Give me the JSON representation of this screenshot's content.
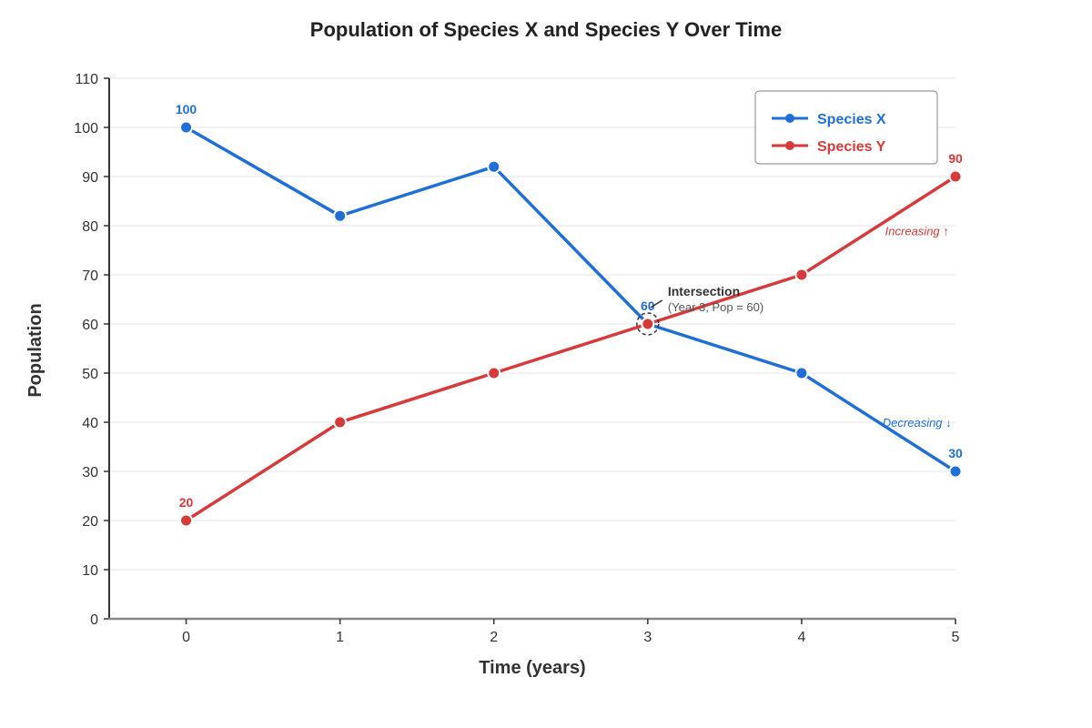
{
  "chart_data": {
    "type": "line",
    "title": "Population of Species X and Species Y Over Time",
    "xlabel": "Time (years)",
    "ylabel": "Population",
    "x": [
      0,
      1,
      2,
      3,
      4,
      5
    ],
    "xlim": [
      -0.5,
      5
    ],
    "ylim": [
      0,
      110
    ],
    "yticks": [
      0,
      10,
      20,
      30,
      40,
      50,
      60,
      70,
      80,
      90,
      100,
      110
    ],
    "grid": true,
    "legend_position": "top-right",
    "series": [
      {
        "name": "Species X",
        "color": "#1f6fd6",
        "values": [
          100,
          82,
          92,
          60,
          50,
          30
        ]
      },
      {
        "name": "Species Y",
        "color": "#d63a3a",
        "values": [
          20,
          40,
          50,
          60,
          70,
          90
        ]
      }
    ],
    "data_labels": [
      {
        "series": 0,
        "index": 0,
        "text": "100"
      },
      {
        "series": 0,
        "index": 3,
        "text": "60"
      },
      {
        "series": 0,
        "index": 5,
        "text": "30"
      },
      {
        "series": 1,
        "index": 0,
        "text": "20"
      },
      {
        "series": 1,
        "index": 5,
        "text": "90"
      }
    ],
    "annotations": {
      "intersection": {
        "x": 3,
        "y": 60,
        "title": "Intersection",
        "detail": "(Year 3, Pop = 60)"
      },
      "trend_y": {
        "text": "Increasing ↑",
        "x": 4.75,
        "y": 79
      },
      "trend_x": {
        "text": "Decreasing ↓",
        "x": 4.75,
        "y": 40
      }
    }
  }
}
